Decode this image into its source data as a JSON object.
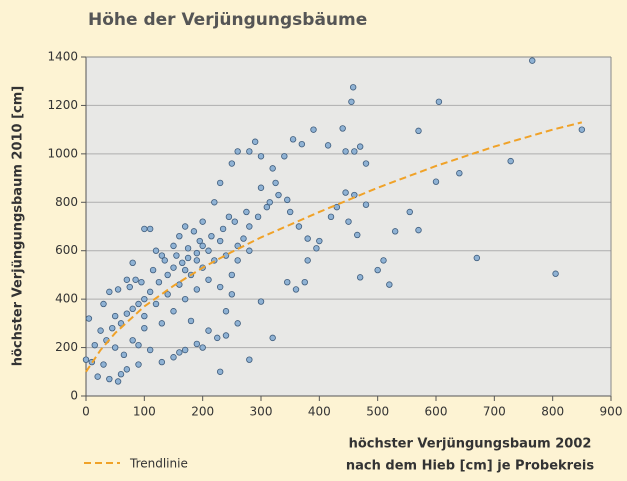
{
  "chart_data": {
    "type": "scatter",
    "title": "Höhe der Verjüngungsbäume",
    "ylabel": "höchster Verjüngungsbaum 2010 [cm]",
    "xlabel": [
      "höchster Verjüngungsbaum 2002",
      "nach dem Hieb [cm] je Probekreis"
    ],
    "xlim": [
      0,
      900
    ],
    "ylim": [
      0,
      1400
    ],
    "xticks": [
      0,
      100,
      200,
      300,
      400,
      500,
      600,
      700,
      800,
      900
    ],
    "yticks": [
      0,
      200,
      400,
      600,
      800,
      1000,
      1200,
      1400
    ],
    "grid": true,
    "series": [
      {
        "color": "#8fb2d4",
        "x": [
          765,
          850,
          805,
          670,
          728,
          605,
          600,
          570,
          570,
          458,
          455,
          440,
          390,
          415,
          470,
          480,
          460,
          480,
          450,
          465,
          470,
          500,
          520,
          510,
          530,
          555,
          640,
          380,
          375,
          395,
          360,
          345,
          320,
          280,
          230,
          240,
          225,
          210,
          190,
          180,
          170,
          150,
          130,
          110,
          100,
          90,
          70,
          55,
          40,
          30,
          20,
          10,
          5,
          60,
          65,
          50,
          45,
          35,
          25,
          15,
          0,
          30,
          40,
          55,
          70,
          80,
          100,
          110,
          120,
          130,
          150,
          160,
          170,
          185,
          200,
          220,
          230,
          250,
          260,
          280,
          290,
          300,
          320,
          340,
          355,
          370,
          330,
          345,
          310,
          300,
          280,
          270,
          260,
          245,
          230,
          210,
          190,
          175,
          165,
          150,
          140,
          125,
          110,
          100,
          90,
          80,
          70,
          60,
          50,
          120,
          140,
          160,
          180,
          200,
          220,
          240,
          260,
          280,
          150,
          170,
          190,
          210,
          230,
          250,
          190,
          170,
          200,
          215,
          235,
          255,
          275,
          295,
          315,
          325,
          350,
          365,
          380,
          400,
          430,
          445,
          420,
          445,
          460,
          300,
          250,
          260,
          240,
          200,
          160,
          130,
          80,
          90,
          100,
          75,
          85,
          95,
          115,
          135,
          155,
          175,
          195
        ],
        "values": [
          1385,
          1100,
          505,
          570,
          970,
          1215,
          885,
          1095,
          685,
          1275,
          1215,
          1105,
          1100,
          1035,
          1030,
          960,
          830,
          790,
          720,
          665,
          490,
          520,
          460,
          560,
          680,
          760,
          920,
          560,
          470,
          610,
          440,
          470,
          240,
          150,
          100,
          350,
          240,
          270,
          215,
          310,
          190,
          160,
          140,
          190,
          280,
          210,
          110,
          60,
          70,
          130,
          80,
          140,
          320,
          90,
          170,
          200,
          280,
          230,
          270,
          210,
          150,
          380,
          430,
          440,
          480,
          550,
          690,
          690,
          600,
          580,
          620,
          660,
          700,
          680,
          720,
          800,
          880,
          960,
          1010,
          1010,
          1050,
          990,
          940,
          990,
          1060,
          1040,
          830,
          810,
          780,
          860,
          700,
          650,
          620,
          740,
          640,
          600,
          590,
          570,
          550,
          530,
          500,
          470,
          430,
          400,
          380,
          360,
          340,
          300,
          330,
          380,
          420,
          460,
          500,
          530,
          560,
          580,
          560,
          600,
          350,
          400,
          440,
          480,
          450,
          500,
          560,
          520,
          620,
          660,
          690,
          720,
          760,
          740,
          800,
          880,
          760,
          700,
          650,
          640,
          780,
          840,
          740,
          1010,
          1010,
          390,
          420,
          300,
          250,
          200,
          180,
          300,
          230,
          130,
          330,
          450,
          480,
          470,
          520,
          560,
          580,
          610,
          640
        ]
      },
      {
        "name": "Trendlinie",
        "type": "line",
        "color": "#f0a228",
        "x": [
          0,
          25,
          50,
          100,
          150,
          200,
          250,
          300,
          400,
          500,
          600,
          700,
          800,
          850
        ],
        "values": [
          100,
          190,
          260,
          370,
          455,
          530,
          595,
          655,
          760,
          860,
          950,
          1030,
          1100,
          1130
        ]
      }
    ]
  }
}
